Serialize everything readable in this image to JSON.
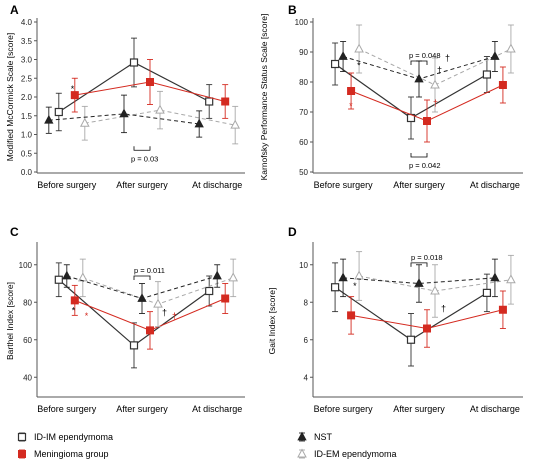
{
  "colors": {
    "im": "#333333",
    "men": "#d42a20",
    "nst": "#222222",
    "em": "#a9a9a9"
  },
  "legend": {
    "items": [
      {
        "key": "im",
        "label": "ID-IM ependymoma",
        "marker": "square-open",
        "line": "solid"
      },
      {
        "key": "men",
        "label": "Meningioma group",
        "marker": "square-filled",
        "line": "solid"
      },
      {
        "key": "nst",
        "label": "NST",
        "marker": "triangle-filled",
        "line": "dashed"
      },
      {
        "key": "em",
        "label": "ID-EM ependymoma",
        "marker": "triangle-open",
        "line": "dashed"
      }
    ]
  },
  "chart_data": [
    {
      "panel": "A",
      "type": "line",
      "ylabel": "Modified McCormick Scale",
      "ylabel_unit": "[score]",
      "categories": [
        "Before surgery",
        "After surgery",
        "At discharge"
      ],
      "ylim": [
        0,
        4
      ],
      "yticks": [
        "0.0",
        "0.5",
        "1.0",
        "1.5",
        "2.0",
        "2.5",
        "3.0",
        "3.5",
        "4.0"
      ],
      "series": [
        {
          "name": "ID-IM ependymoma",
          "key": "im",
          "values": [
            1.6,
            2.92,
            1.88
          ],
          "err": [
            0.5,
            0.65,
            0.45
          ]
        },
        {
          "name": "Meningioma group",
          "key": "men",
          "values": [
            2.05,
            2.4,
            1.88
          ],
          "err": [
            0.45,
            0.6,
            0.45
          ]
        },
        {
          "name": "NST",
          "key": "nst",
          "values": [
            1.38,
            1.55,
            1.28
          ],
          "err": [
            0.35,
            0.5,
            0.35
          ]
        },
        {
          "name": "ID-EM ependymoma",
          "key": "em",
          "values": [
            1.3,
            1.65,
            1.25
          ],
          "err": [
            0.45,
            0.5,
            0.5
          ]
        }
      ],
      "annotations": [
        {
          "text": "p = 0.03"
        },
        {
          "text": "*"
        }
      ]
    },
    {
      "panel": "B",
      "type": "line",
      "ylabel": "Karnofsky Performance Status Scale",
      "ylabel_unit": "[score]",
      "categories": [
        "Before surgery",
        "After surgery",
        "At discharge"
      ],
      "ylim": [
        50,
        100
      ],
      "yticks": [
        "50",
        "60",
        "70",
        "80",
        "90",
        "100"
      ],
      "series": [
        {
          "name": "ID-IM ependymoma",
          "key": "im",
          "values": [
            86,
            68,
            82.5
          ],
          "err": [
            7,
            7,
            6
          ]
        },
        {
          "name": "Meningioma group",
          "key": "men",
          "values": [
            77,
            67,
            79
          ],
          "err": [
            6,
            7,
            6
          ]
        },
        {
          "name": "NST",
          "key": "nst",
          "values": [
            88.5,
            81,
            88.5
          ],
          "err": [
            5,
            6,
            5
          ]
        },
        {
          "name": "ID-EM ependymoma",
          "key": "em",
          "values": [
            91,
            79,
            91
          ],
          "err": [
            8,
            9,
            8
          ]
        }
      ],
      "annotations": [
        {
          "text": "p = 0.048"
        },
        {
          "text": "p = 0.042"
        },
        {
          "text": "*"
        },
        {
          "text": "†"
        }
      ]
    },
    {
      "panel": "C",
      "type": "line",
      "ylabel": "Barthel Index",
      "ylabel_unit": "[score]",
      "categories": [
        "Before surgery",
        "After surgery",
        "At discharge"
      ],
      "ylim": [
        30,
        110
      ],
      "yticks": [
        "40",
        "60",
        "80",
        "100"
      ],
      "series": [
        {
          "name": "ID-IM ependymoma",
          "key": "im",
          "values": [
            92,
            57,
            86
          ],
          "err": [
            9,
            12,
            8
          ]
        },
        {
          "name": "Meningioma group",
          "key": "men",
          "values": [
            81,
            65,
            82
          ],
          "err": [
            8,
            10,
            8
          ]
        },
        {
          "name": "NST",
          "key": "nst",
          "values": [
            94,
            82,
            94
          ],
          "err": [
            6,
            8,
            6
          ]
        },
        {
          "name": "ID-EM ependymoma",
          "key": "em",
          "values": [
            93,
            79,
            93
          ],
          "err": [
            10,
            12,
            10
          ]
        }
      ],
      "annotations": [
        {
          "text": "p = 0.011"
        },
        {
          "text": "*"
        },
        {
          "text": "†"
        }
      ]
    },
    {
      "panel": "D",
      "type": "line",
      "ylabel": "Gait Index",
      "ylabel_unit": "[score]",
      "categories": [
        "Before surgery",
        "After surgery",
        "At discharge"
      ],
      "ylim": [
        3,
        11
      ],
      "yticks": [
        "4",
        "6",
        "8",
        "10"
      ],
      "series": [
        {
          "name": "ID-IM ependymoma",
          "key": "im",
          "values": [
            8.8,
            6.0,
            8.5
          ],
          "err": [
            1.3,
            1.4,
            1.0
          ]
        },
        {
          "name": "Meningioma group",
          "key": "men",
          "values": [
            7.3,
            6.6,
            7.6
          ],
          "err": [
            1.0,
            1.0,
            1.0
          ]
        },
        {
          "name": "NST",
          "key": "nst",
          "values": [
            9.3,
            9.0,
            9.3
          ],
          "err": [
            1.0,
            1.0,
            1.0
          ]
        },
        {
          "name": "ID-EM ependymoma",
          "key": "em",
          "values": [
            9.4,
            8.6,
            9.2
          ],
          "err": [
            1.3,
            1.4,
            1.3
          ]
        }
      ],
      "annotations": [
        {
          "text": "p = 0.018"
        },
        {
          "text": "*"
        },
        {
          "text": "†"
        }
      ]
    }
  ]
}
